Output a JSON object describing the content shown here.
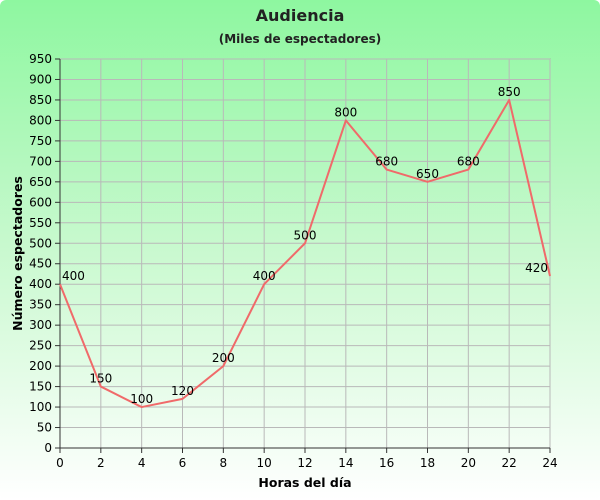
{
  "chart_data": {
    "type": "line",
    "title": "Audiencia",
    "subtitle": "(Miles de espectadores)",
    "xlabel": "Horas del día",
    "ylabel": "Número espectadores",
    "x": [
      0,
      2,
      4,
      6,
      8,
      10,
      12,
      14,
      16,
      18,
      20,
      22,
      24
    ],
    "series": [
      {
        "values": [
          400,
          150,
          100,
          120,
          200,
          400,
          500,
          800,
          680,
          650,
          680,
          850,
          420
        ],
        "color": "#f06a6a"
      }
    ],
    "xlim": [
      0,
      24
    ],
    "ylim": [
      0,
      950
    ],
    "xticks": [
      0,
      2,
      4,
      6,
      8,
      10,
      12,
      14,
      16,
      18,
      20,
      22,
      24
    ],
    "yticks": [
      0,
      50,
      100,
      150,
      200,
      250,
      300,
      350,
      400,
      450,
      500,
      550,
      600,
      650,
      700,
      750,
      800,
      850,
      900,
      950
    ],
    "grid": true,
    "data_labels": true,
    "background_colors": [
      "#8ef7a0",
      "#ffffff"
    ]
  }
}
